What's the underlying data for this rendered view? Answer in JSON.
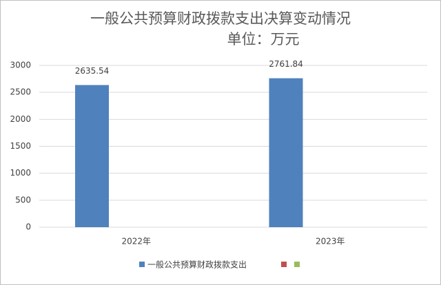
{
  "chart_data": {
    "type": "bar",
    "title": "一般公共预算财政拨款支出决算变动情况",
    "subtitle": "单位：万元",
    "categories": [
      "2022年",
      "2023年"
    ],
    "series": [
      {
        "name": "一般公共预算财政拨款支出",
        "color": "#4f81bd",
        "values": [
          2635.54,
          2761.84
        ]
      }
    ],
    "ylim": [
      0,
      3000
    ],
    "yticks": [
      0,
      500,
      1000,
      1500,
      2000,
      2500,
      3000
    ],
    "grid": true,
    "legend": "bottom"
  }
}
